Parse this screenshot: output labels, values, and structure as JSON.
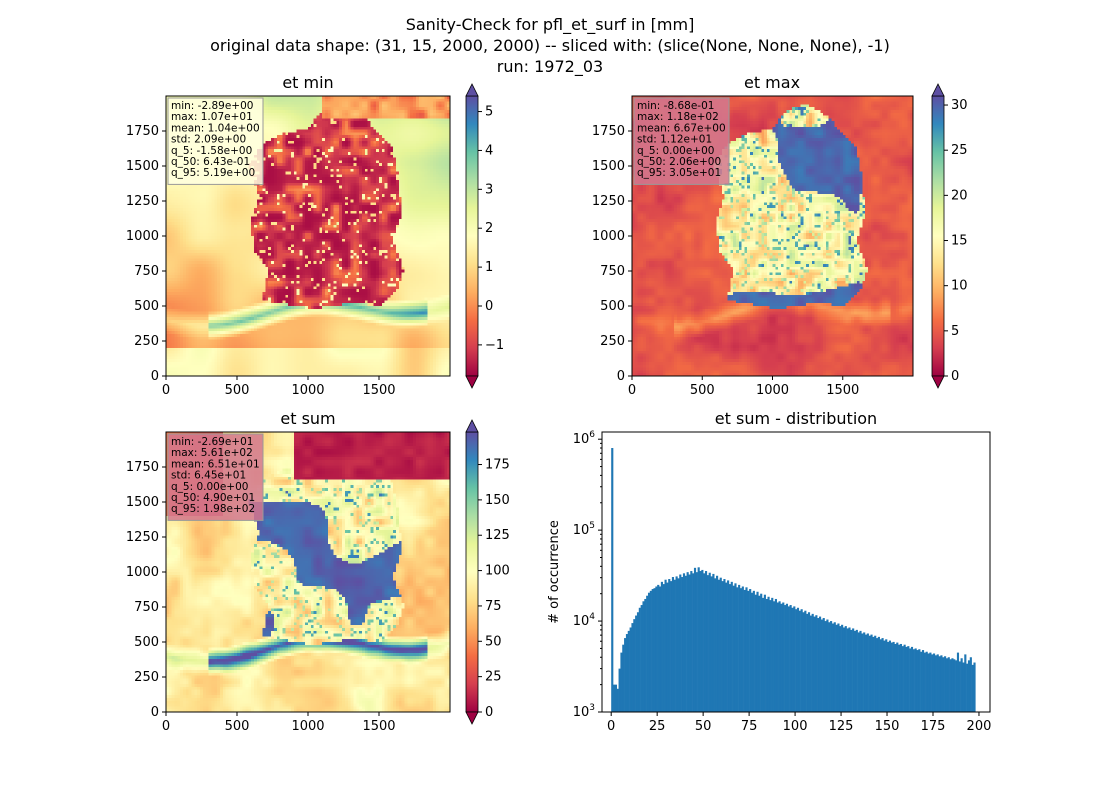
{
  "figure": {
    "suptitle": [
      "Sanity-Check for pfl_et_surf in [mm]",
      "original data shape: (31, 15, 2000, 2000) -- sliced with: (slice(None, None, None), -1)",
      "run: 1972_03"
    ]
  },
  "chart_data": [
    {
      "type": "heatmap",
      "title": "et min",
      "colormap": "Spectral",
      "x_ticks": [
        "0",
        "500",
        "1000",
        "1500"
      ],
      "y_ticks": [
        "0",
        "250",
        "500",
        "750",
        "1000",
        "1250",
        "1500",
        "1750"
      ],
      "xlim": [
        0,
        2000
      ],
      "ylim": [
        0,
        2000
      ],
      "colorbar": {
        "ticks": [
          "−1",
          "0",
          "1",
          "2",
          "3",
          "4",
          "5"
        ],
        "tick_values": [
          -1,
          0,
          1,
          2,
          3,
          4,
          5
        ],
        "range": [
          -1.8,
          5.4
        ],
        "extend": "both"
      },
      "stats": [
        "min: -2.89e+00",
        "max: 1.07e+01",
        "mean: 1.04e+00",
        "std: 2.09e+00",
        "q_5: -1.58e+00",
        "q_50: 6.43e-01",
        "q_95: 5.19e+00"
      ],
      "stats_box_color": "#ffffe0"
    },
    {
      "type": "heatmap",
      "title": "et max",
      "colormap": "Spectral",
      "x_ticks": [
        "0",
        "500",
        "1000",
        "1500"
      ],
      "y_ticks": [
        "0",
        "250",
        "500",
        "750",
        "1000",
        "1250",
        "1500",
        "1750"
      ],
      "xlim": [
        0,
        2000
      ],
      "ylim": [
        0,
        2000
      ],
      "colorbar": {
        "ticks": [
          "0",
          "5",
          "10",
          "15",
          "20",
          "25",
          "30"
        ],
        "tick_values": [
          0,
          5,
          10,
          15,
          20,
          25,
          30
        ],
        "range": [
          0,
          31
        ],
        "extend": "both"
      },
      "stats": [
        "min: -8.68e-01",
        "max: 1.18e+02",
        "mean: 6.67e+00",
        "std: 1.12e+01",
        "q_5: 0.00e+00",
        "q_50: 2.06e+00",
        "q_95: 3.05e+01"
      ],
      "stats_box_color": "#d2788f"
    },
    {
      "type": "heatmap",
      "title": "et sum",
      "colormap": "Spectral",
      "x_ticks": [
        "0",
        "500",
        "1000",
        "1500"
      ],
      "y_ticks": [
        "0",
        "250",
        "500",
        "750",
        "1000",
        "1250",
        "1500",
        "1750"
      ],
      "xlim": [
        0,
        2000
      ],
      "ylim": [
        0,
        2000
      ],
      "colorbar": {
        "ticks": [
          "0",
          "25",
          "50",
          "75",
          "100",
          "125",
          "150",
          "175"
        ],
        "tick_values": [
          0,
          25,
          50,
          75,
          100,
          125,
          150,
          175
        ],
        "range": [
          0,
          198
        ],
        "extend": "both"
      },
      "stats": [
        "min: -2.69e+01",
        "max: 5.61e+02",
        "mean: 6.51e+01",
        "std: 6.45e+01",
        "q_5: 0.00e+00",
        "q_50: 4.90e+01",
        "q_95: 1.98e+02"
      ],
      "stats_box_color": "#d2788f"
    },
    {
      "type": "bar",
      "title": "et sum - distribution",
      "ylabel": "# of occurrence",
      "xlabel": "",
      "yscale": "log",
      "x_ticks": [
        "0",
        "25",
        "50",
        "75",
        "100",
        "125",
        "150",
        "175",
        "200"
      ],
      "x_tick_values": [
        0,
        25,
        50,
        75,
        100,
        125,
        150,
        175,
        200
      ],
      "y_ticks": [
        "10^3",
        "10^4",
        "10^5",
        "10^6"
      ],
      "xlim": [
        -5,
        206
      ],
      "ylim": [
        1000,
        1200000
      ],
      "bar_color": "#1f77b4",
      "bin_width": 1,
      "bins": [
        [
          0,
          800000
        ],
        [
          1,
          2000
        ],
        [
          2,
          2000
        ],
        [
          3,
          1800
        ],
        [
          4,
          3000
        ],
        [
          5,
          4500
        ],
        [
          6,
          5500
        ],
        [
          7,
          6500
        ],
        [
          8,
          7200
        ],
        [
          9,
          7800
        ],
        [
          10,
          8500
        ],
        [
          11,
          9500
        ],
        [
          12,
          10500
        ],
        [
          13,
          11500
        ],
        [
          14,
          12500
        ],
        [
          15,
          14000
        ],
        [
          16,
          15000
        ],
        [
          17,
          16500
        ],
        [
          18,
          17500
        ],
        [
          19,
          19000
        ],
        [
          20,
          20500
        ],
        [
          21,
          21500
        ],
        [
          22,
          22500
        ],
        [
          23,
          23000
        ],
        [
          24,
          24000
        ],
        [
          25,
          25000
        ],
        [
          26,
          24000
        ],
        [
          27,
          27000
        ],
        [
          28,
          25500
        ],
        [
          29,
          28500
        ],
        [
          30,
          26500
        ],
        [
          31,
          29000
        ],
        [
          32,
          27500
        ],
        [
          33,
          30500
        ],
        [
          34,
          28500
        ],
        [
          35,
          31000
        ],
        [
          36,
          29500
        ],
        [
          37,
          32500
        ],
        [
          38,
          30500
        ],
        [
          39,
          33500
        ],
        [
          40,
          31500
        ],
        [
          41,
          34500
        ],
        [
          42,
          32500
        ],
        [
          43,
          35500
        ],
        [
          44,
          33500
        ],
        [
          45,
          38500
        ],
        [
          46,
          34500
        ],
        [
          47,
          39000
        ],
        [
          48,
          35500
        ],
        [
          49,
          36500
        ],
        [
          50,
          33500
        ],
        [
          51,
          35500
        ],
        [
          52,
          32000
        ],
        [
          53,
          34000
        ],
        [
          54,
          31000
        ],
        [
          55,
          33000
        ],
        [
          56,
          29500
        ],
        [
          57,
          31500
        ],
        [
          58,
          28500
        ],
        [
          59,
          30000
        ],
        [
          60,
          27500
        ],
        [
          61,
          29000
        ],
        [
          62,
          26500
        ],
        [
          63,
          28000
        ],
        [
          64,
          25500
        ],
        [
          65,
          27000
        ],
        [
          66,
          24500
        ],
        [
          67,
          26000
        ],
        [
          68,
          23500
        ],
        [
          69,
          25000
        ],
        [
          70,
          23000
        ],
        [
          71,
          24000
        ],
        [
          72,
          22000
        ],
        [
          73,
          23500
        ],
        [
          74,
          21500
        ],
        [
          75,
          22500
        ],
        [
          76,
          20500
        ],
        [
          77,
          21500
        ],
        [
          78,
          19500
        ],
        [
          79,
          21000
        ],
        [
          80,
          19000
        ],
        [
          81,
          20000
        ],
        [
          82,
          18000
        ],
        [
          83,
          19500
        ],
        [
          84,
          17500
        ],
        [
          85,
          18500
        ],
        [
          86,
          17000
        ],
        [
          87,
          18000
        ],
        [
          88,
          16500
        ],
        [
          89,
          17500
        ],
        [
          90,
          16000
        ],
        [
          91,
          16500
        ],
        [
          92,
          15500
        ],
        [
          93,
          16000
        ],
        [
          94,
          15000
        ],
        [
          95,
          15500
        ],
        [
          96,
          14500
        ],
        [
          97,
          15000
        ],
        [
          98,
          14000
        ],
        [
          99,
          14500
        ],
        [
          100,
          13500
        ],
        [
          101,
          14000
        ],
        [
          102,
          13000
        ],
        [
          103,
          13500
        ],
        [
          104,
          12500
        ],
        [
          105,
          13000
        ],
        [
          106,
          12000
        ],
        [
          107,
          12500
        ],
        [
          108,
          11500
        ],
        [
          109,
          12000
        ],
        [
          110,
          11200
        ],
        [
          111,
          11600
        ],
        [
          112,
          10800
        ],
        [
          113,
          11200
        ],
        [
          114,
          10400
        ],
        [
          115,
          10800
        ],
        [
          116,
          10000
        ],
        [
          117,
          10400
        ],
        [
          118,
          9700
        ],
        [
          119,
          10000
        ],
        [
          120,
          9400
        ],
        [
          121,
          9700
        ],
        [
          122,
          9100
        ],
        [
          123,
          9400
        ],
        [
          124,
          8800
        ],
        [
          125,
          9100
        ],
        [
          126,
          8500
        ],
        [
          127,
          8800
        ],
        [
          128,
          8300
        ],
        [
          129,
          8500
        ],
        [
          130,
          8000
        ],
        [
          131,
          8300
        ],
        [
          132,
          7800
        ],
        [
          133,
          8000
        ],
        [
          134,
          7500
        ],
        [
          135,
          7800
        ],
        [
          136,
          7300
        ],
        [
          137,
          7500
        ],
        [
          138,
          7100
        ],
        [
          139,
          7300
        ],
        [
          140,
          6900
        ],
        [
          141,
          7100
        ],
        [
          142,
          6700
        ],
        [
          143,
          6900
        ],
        [
          144,
          6500
        ],
        [
          145,
          6700
        ],
        [
          146,
          6300
        ],
        [
          147,
          6500
        ],
        [
          148,
          6100
        ],
        [
          149,
          6300
        ],
        [
          150,
          5900
        ],
        [
          151,
          6100
        ],
        [
          152,
          5800
        ],
        [
          153,
          5900
        ],
        [
          154,
          5600
        ],
        [
          155,
          5800
        ],
        [
          156,
          5500
        ],
        [
          157,
          5600
        ],
        [
          158,
          5300
        ],
        [
          159,
          5500
        ],
        [
          160,
          5200
        ],
        [
          161,
          5300
        ],
        [
          162,
          5000
        ],
        [
          163,
          5200
        ],
        [
          164,
          4900
        ],
        [
          165,
          5000
        ],
        [
          166,
          4800
        ],
        [
          167,
          4900
        ],
        [
          168,
          4600
        ],
        [
          169,
          4800
        ],
        [
          170,
          4500
        ],
        [
          171,
          4600
        ],
        [
          172,
          4400
        ],
        [
          173,
          4500
        ],
        [
          174,
          4300
        ],
        [
          175,
          4400
        ],
        [
          176,
          4200
        ],
        [
          177,
          4300
        ],
        [
          178,
          4100
        ],
        [
          179,
          4200
        ],
        [
          180,
          4000
        ],
        [
          181,
          4100
        ],
        [
          182,
          3900
        ],
        [
          183,
          4000
        ],
        [
          184,
          3800
        ],
        [
          185,
          3900
        ],
        [
          186,
          3800
        ],
        [
          187,
          3700
        ],
        [
          188,
          4500
        ],
        [
          189,
          3600
        ],
        [
          190,
          3900
        ],
        [
          191,
          3500
        ],
        [
          192,
          4300
        ],
        [
          193,
          3400
        ],
        [
          194,
          3700
        ],
        [
          195,
          4000
        ],
        [
          196,
          3300
        ],
        [
          197,
          3500
        ]
      ]
    }
  ]
}
